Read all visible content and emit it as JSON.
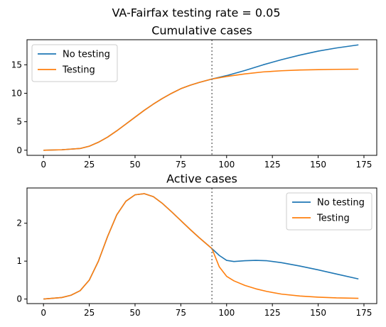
{
  "figure": {
    "suptitle": "VA-Fairfax testing rate = 0.05"
  },
  "chart_data": [
    {
      "type": "line",
      "title": "Cumulative cases",
      "xlabel": "",
      "ylabel": "",
      "xlim": [
        -9,
        182
      ],
      "ylim": [
        -0.9,
        19.4
      ],
      "xticks": [
        0,
        25,
        50,
        75,
        100,
        125,
        150,
        175
      ],
      "yticks": [
        0,
        5,
        10,
        15
      ],
      "grid": false,
      "legend_position": "top-left",
      "vline": {
        "x": 92,
        "color": "#808080",
        "style": "dotted"
      },
      "series": [
        {
          "name": "No testing",
          "color": "#1f77b4",
          "x": [
            0,
            10,
            20,
            25,
            30,
            35,
            40,
            45,
            50,
            55,
            60,
            65,
            70,
            75,
            80,
            85,
            92,
            100,
            110,
            120,
            130,
            140,
            150,
            160,
            172
          ],
          "y": [
            0,
            0.08,
            0.3,
            0.7,
            1.4,
            2.3,
            3.4,
            4.6,
            5.8,
            7.0,
            8.1,
            9.1,
            10.0,
            10.8,
            11.4,
            11.9,
            12.5,
            13.1,
            14.0,
            15.0,
            15.9,
            16.7,
            17.4,
            17.95,
            18.5
          ]
        },
        {
          "name": "Testing",
          "color": "#ff7f0e",
          "x": [
            0,
            10,
            20,
            25,
            30,
            35,
            40,
            45,
            50,
            55,
            60,
            65,
            70,
            75,
            80,
            85,
            92,
            100,
            110,
            120,
            130,
            140,
            150,
            160,
            172
          ],
          "y": [
            0,
            0.08,
            0.3,
            0.7,
            1.4,
            2.3,
            3.4,
            4.6,
            5.8,
            7.0,
            8.1,
            9.1,
            10.0,
            10.8,
            11.4,
            11.9,
            12.5,
            12.95,
            13.4,
            13.75,
            13.95,
            14.08,
            14.15,
            14.2,
            14.23
          ]
        }
      ]
    },
    {
      "type": "line",
      "title": "Active cases",
      "xlabel": "",
      "ylabel": "",
      "xlim": [
        -9,
        182
      ],
      "ylim": [
        -0.12,
        2.93
      ],
      "xticks": [
        0,
        25,
        50,
        75,
        100,
        125,
        150,
        175
      ],
      "yticks": [
        0,
        1,
        2
      ],
      "grid": false,
      "legend_position": "top-right",
      "vline": {
        "x": 92,
        "color": "#808080",
        "style": "dotted"
      },
      "series": [
        {
          "name": "No testing",
          "color": "#1f77b4",
          "x": [
            0,
            10,
            15,
            20,
            25,
            30,
            35,
            40,
            45,
            50,
            55,
            60,
            65,
            70,
            75,
            80,
            85,
            92,
            96,
            100,
            104,
            110,
            116,
            122,
            130,
            140,
            150,
            160,
            172
          ],
          "y": [
            0,
            0.04,
            0.1,
            0.22,
            0.5,
            1.0,
            1.65,
            2.22,
            2.58,
            2.75,
            2.78,
            2.7,
            2.52,
            2.3,
            2.07,
            1.84,
            1.62,
            1.33,
            1.15,
            1.02,
            0.99,
            1.01,
            1.02,
            1.01,
            0.96,
            0.87,
            0.77,
            0.66,
            0.53
          ]
        },
        {
          "name": "Testing",
          "color": "#ff7f0e",
          "x": [
            0,
            10,
            15,
            20,
            25,
            30,
            35,
            40,
            45,
            50,
            55,
            60,
            65,
            70,
            75,
            80,
            85,
            92,
            96,
            100,
            104,
            110,
            116,
            122,
            130,
            140,
            150,
            160,
            172
          ],
          "y": [
            0,
            0.04,
            0.1,
            0.22,
            0.5,
            1.0,
            1.65,
            2.22,
            2.58,
            2.75,
            2.78,
            2.7,
            2.52,
            2.3,
            2.07,
            1.84,
            1.62,
            1.33,
            0.85,
            0.6,
            0.48,
            0.36,
            0.27,
            0.2,
            0.13,
            0.08,
            0.05,
            0.03,
            0.02
          ]
        }
      ]
    }
  ]
}
